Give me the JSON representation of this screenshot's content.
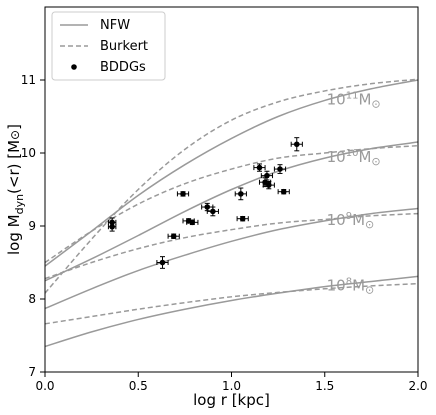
{
  "chart_data": {
    "type": "scatter",
    "xlabel": "log r [kpc]",
    "ylabel": "log M_dyn(<r) [M_⊙]",
    "xlim": [
      0.0,
      2.0
    ],
    "ylim": [
      7.0,
      12.0
    ],
    "xticks": [
      "0.0",
      "0.5",
      "1.0",
      "1.5",
      "2.0"
    ],
    "yticks": [
      "7",
      "8",
      "9",
      "10",
      "11"
    ],
    "grid": false,
    "legend": {
      "position": "top-left",
      "entries": [
        {
          "label": "NFW",
          "style": "solid"
        },
        {
          "label": "Burkert",
          "style": "dashed"
        },
        {
          "label": "BDDGs",
          "style": "marker"
        }
      ]
    },
    "line_color": "#9a9a9a",
    "marker_color": "#000000",
    "curves": [
      {
        "annotation": "10",
        "exp": "11",
        "unit": "M",
        "nfw": [
          [
            0,
            8.45
          ],
          [
            0.25,
            8.93
          ],
          [
            0.5,
            9.42
          ],
          [
            0.75,
            9.84
          ],
          [
            1.0,
            10.2
          ],
          [
            1.25,
            10.5
          ],
          [
            1.5,
            10.72
          ],
          [
            1.75,
            10.88
          ],
          [
            2.0,
            11.0
          ]
        ],
        "burkert": [
          [
            0,
            8.08
          ],
          [
            0.25,
            8.82
          ],
          [
            0.5,
            9.5
          ],
          [
            0.75,
            10.05
          ],
          [
            1.0,
            10.45
          ],
          [
            1.25,
            10.7
          ],
          [
            1.5,
            10.85
          ],
          [
            1.75,
            10.95
          ],
          [
            2.0,
            11.01
          ]
        ]
      },
      {
        "annotation": "10",
        "exp": "10",
        "unit": "M",
        "nfw": [
          [
            0,
            8.25
          ],
          [
            0.25,
            8.55
          ],
          [
            0.5,
            8.87
          ],
          [
            0.75,
            9.2
          ],
          [
            1.0,
            9.5
          ],
          [
            1.25,
            9.75
          ],
          [
            1.5,
            9.93
          ],
          [
            1.75,
            10.06
          ],
          [
            2.0,
            10.15
          ]
        ],
        "burkert": [
          [
            0,
            8.5
          ],
          [
            0.25,
            8.93
          ],
          [
            0.5,
            9.3
          ],
          [
            0.75,
            9.58
          ],
          [
            1.0,
            9.78
          ],
          [
            1.25,
            9.93
          ],
          [
            1.5,
            10.0
          ],
          [
            1.75,
            10.06
          ],
          [
            2.0,
            10.1
          ]
        ]
      },
      {
        "annotation": "10",
        "exp": "9",
        "unit": "M",
        "nfw": [
          [
            0,
            7.87
          ],
          [
            0.25,
            8.14
          ],
          [
            0.5,
            8.39
          ],
          [
            0.75,
            8.6
          ],
          [
            1.0,
            8.79
          ],
          [
            1.25,
            8.95
          ],
          [
            1.5,
            9.07
          ],
          [
            1.75,
            9.17
          ],
          [
            2.0,
            9.24
          ]
        ],
        "burkert": [
          [
            0,
            8.28
          ],
          [
            0.25,
            8.5
          ],
          [
            0.5,
            8.69
          ],
          [
            0.75,
            8.84
          ],
          [
            1.0,
            8.95
          ],
          [
            1.25,
            9.04
          ],
          [
            1.5,
            9.09
          ],
          [
            1.75,
            9.14
          ],
          [
            2.0,
            9.17
          ]
        ]
      },
      {
        "annotation": "10",
        "exp": "8",
        "unit": "M",
        "nfw": [
          [
            0,
            7.35
          ],
          [
            0.25,
            7.55
          ],
          [
            0.5,
            7.72
          ],
          [
            0.75,
            7.86
          ],
          [
            1.0,
            7.98
          ],
          [
            1.25,
            8.08
          ],
          [
            1.5,
            8.17
          ],
          [
            1.75,
            8.24
          ],
          [
            2.0,
            8.31
          ]
        ],
        "burkert": [
          [
            0,
            7.66
          ],
          [
            0.25,
            7.76
          ],
          [
            0.5,
            7.86
          ],
          [
            0.75,
            7.95
          ],
          [
            1.0,
            8.03
          ],
          [
            1.25,
            8.09
          ],
          [
            1.5,
            8.14
          ],
          [
            1.75,
            8.18
          ],
          [
            2.0,
            8.21
          ]
        ]
      }
    ],
    "points": [
      {
        "x": 0.36,
        "y": 9.05,
        "xerr": 0.02,
        "yerr": 0.06
      },
      {
        "x": 0.36,
        "y": 8.99,
        "xerr": 0.02,
        "yerr": 0.06
      },
      {
        "x": 0.63,
        "y": 8.5,
        "xerr": 0.03,
        "yerr": 0.08
      },
      {
        "x": 0.69,
        "y": 8.86,
        "xerr": 0.03,
        "yerr": 0.03
      },
      {
        "x": 0.74,
        "y": 9.44,
        "xerr": 0.03,
        "yerr": 0.03
      },
      {
        "x": 0.77,
        "y": 9.07,
        "xerr": 0.03,
        "yerr": 0.03
      },
      {
        "x": 0.79,
        "y": 9.05,
        "xerr": 0.03,
        "yerr": 0.03
      },
      {
        "x": 0.87,
        "y": 9.26,
        "xerr": 0.03,
        "yerr": 0.05
      },
      {
        "x": 0.9,
        "y": 9.2,
        "xerr": 0.03,
        "yerr": 0.06
      },
      {
        "x": 1.05,
        "y": 9.44,
        "xerr": 0.03,
        "yerr": 0.08
      },
      {
        "x": 1.06,
        "y": 9.1,
        "xerr": 0.03,
        "yerr": 0.03
      },
      {
        "x": 1.15,
        "y": 9.8,
        "xerr": 0.03,
        "yerr": 0.05
      },
      {
        "x": 1.18,
        "y": 9.6,
        "xerr": 0.03,
        "yerr": 0.06
      },
      {
        "x": 1.19,
        "y": 9.69,
        "xerr": 0.03,
        "yerr": 0.06
      },
      {
        "x": 1.2,
        "y": 9.56,
        "xerr": 0.03,
        "yerr": 0.05
      },
      {
        "x": 1.26,
        "y": 9.78,
        "xerr": 0.03,
        "yerr": 0.06
      },
      {
        "x": 1.28,
        "y": 9.47,
        "xerr": 0.03,
        "yerr": 0.03
      },
      {
        "x": 1.35,
        "y": 10.12,
        "xerr": 0.03,
        "yerr": 0.09
      }
    ]
  }
}
